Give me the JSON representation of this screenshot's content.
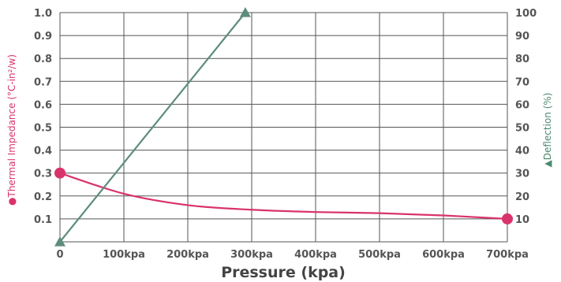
{
  "chart_data": {
    "type": "line",
    "xlabel": "Pressure (kpa)",
    "ylabel_left": "●Thermal Impedance (°C-in²/w)",
    "ylabel_right": "▲Deflection (%)",
    "x_ticks": [
      "0",
      "100kpa",
      "200kpa",
      "300kpa",
      "400kpa",
      "500kpa",
      "600kpa",
      "700kpa"
    ],
    "y_left_ticks": [
      "0.1",
      "0.2",
      "0.3",
      "0.4",
      "0.5",
      "0.6",
      "0.7",
      "0.8",
      "0.9",
      "1.0"
    ],
    "y_right_ticks": [
      "10",
      "20",
      "30",
      "40",
      "50",
      "60",
      "70",
      "80",
      "90",
      "100"
    ],
    "xlim": [
      0,
      700
    ],
    "ylim_left": [
      0,
      1.0
    ],
    "ylim_right": [
      0,
      100
    ],
    "grid": true,
    "series": [
      {
        "name": "Thermal Impedance (°C-in²/w)",
        "axis": "left",
        "marker": "circle",
        "color": "#d9336b",
        "x": [
          0,
          100,
          200,
          300,
          400,
          500,
          600,
          700
        ],
        "y": [
          0.3,
          0.21,
          0.16,
          0.14,
          0.13,
          0.125,
          0.115,
          0.1
        ]
      },
      {
        "name": "Deflection (%)",
        "axis": "right",
        "marker": "triangle",
        "color": "#5e8c7c",
        "x": [
          0,
          290
        ],
        "y": [
          0,
          100
        ]
      }
    ]
  }
}
